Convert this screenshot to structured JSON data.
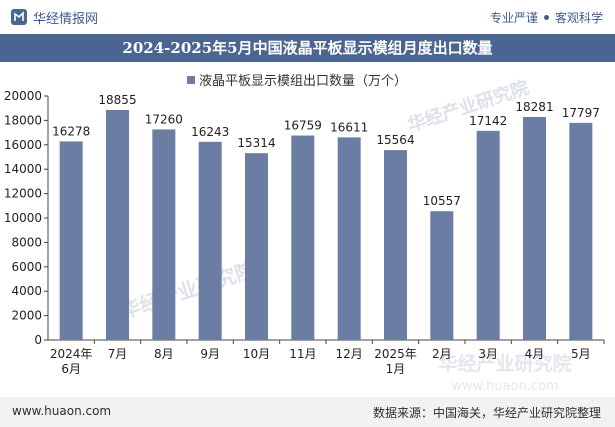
{
  "header": {
    "brand": "华经情报网",
    "slogan_left": "专业严谨",
    "slogan_right": "客观科学"
  },
  "title": "2024-2025年5月中国液晶平板显示模组月度出口数量",
  "watermarks": [
    "华经产业研究院",
    "www.huaon.com"
  ],
  "footer": {
    "site": "www.huaon.com",
    "source": "数据来源：中国海关，华经产业研究院整理"
  },
  "colors": {
    "bar": "#6b7da3",
    "title_bg": "#4a6592",
    "brand": "#3f5a8a"
  },
  "chart_data": {
    "type": "bar",
    "title": "2024-2025年5月中国液晶平板显示模组月度出口数量",
    "legend": "液晶平板显示模组出口数量（万个）",
    "legend_position": "top-center",
    "categories": [
      [
        "2024年",
        "6月"
      ],
      [
        "7月"
      ],
      [
        "8月"
      ],
      [
        "9月"
      ],
      [
        "10月"
      ],
      [
        "11月"
      ],
      [
        "12月"
      ],
      [
        "2025年",
        "1月"
      ],
      [
        "2月"
      ],
      [
        "3月"
      ],
      [
        "4月"
      ],
      [
        "5月"
      ]
    ],
    "values": [
      16278,
      18855,
      17260,
      16243,
      15314,
      16759,
      16611,
      15564,
      10557,
      17142,
      18281,
      17797
    ],
    "ylim": [
      0,
      20000
    ],
    "yticks": [
      0,
      2000,
      4000,
      6000,
      8000,
      10000,
      12000,
      14000,
      16000,
      18000,
      20000
    ],
    "xlabel": "",
    "ylabel": "",
    "grid": false
  }
}
